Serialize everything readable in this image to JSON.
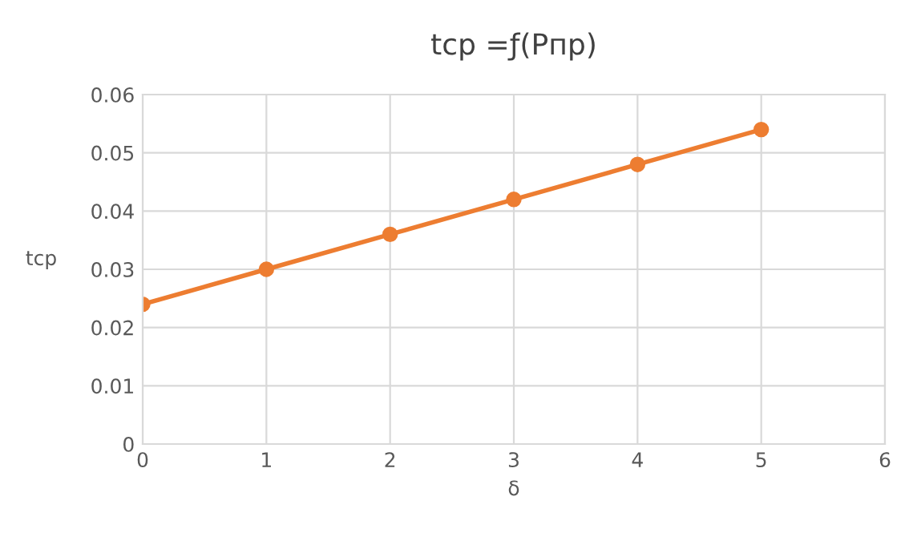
{
  "chart_data": {
    "type": "line",
    "title": "tcp =ƒ(Pпр)",
    "xlabel": "δ",
    "ylabel": "tcp",
    "x": [
      0,
      1,
      2,
      3,
      4,
      5
    ],
    "series": [
      {
        "color": "#ed7d31",
        "values": [
          0.024,
          0.03,
          0.036,
          0.042,
          0.048,
          0.054
        ]
      }
    ],
    "xlim": [
      0,
      6
    ],
    "xticks": [
      0,
      1,
      2,
      3,
      4,
      5,
      6
    ],
    "ylim": [
      0,
      0.06
    ],
    "yticks": [
      0,
      0.01,
      0.02,
      0.03,
      0.04,
      0.05,
      0.06
    ],
    "grid": true,
    "marker": "circle",
    "line_style": "solid",
    "legend": false
  }
}
